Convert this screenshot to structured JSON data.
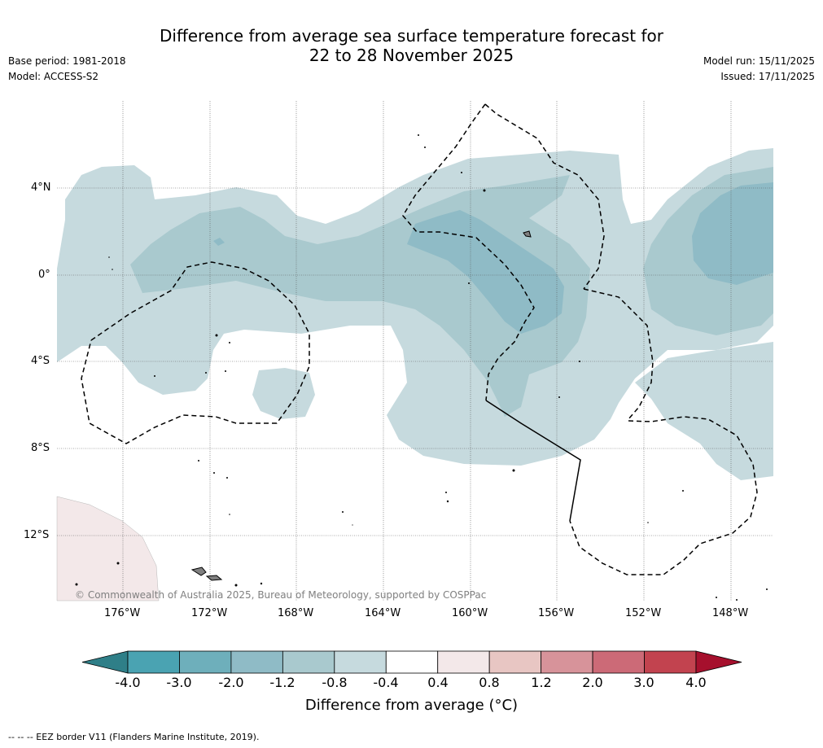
{
  "header": {
    "title_line1": "Difference from average sea surface temperature forecast for",
    "title_line2": "22 to 28 November 2025",
    "base_period": "Base period: 1981-2018",
    "model": "Model: ACCESS-S2",
    "model_run": "Model run: 15/11/2025",
    "issued": "Issued: 17/11/2025"
  },
  "map": {
    "lat_labels": [
      "4°N",
      "0°",
      "4°S",
      "8°S",
      "12°S"
    ],
    "lon_labels": [
      "176°W",
      "172°W",
      "168°W",
      "164°W",
      "160°W",
      "156°W",
      "152°W",
      "148°W"
    ],
    "copyright": "© Commonwealth of Australia 2025, Bureau of Meteorology, supported by COSPPac"
  },
  "colorbar": {
    "ticks": [
      "-4.0",
      "-3.0",
      "-2.0",
      "-1.2",
      "-0.8",
      "-0.4",
      "0.4",
      "0.8",
      "1.2",
      "2.0",
      "3.0",
      "4.0"
    ],
    "colors": [
      "#4aa3b2",
      "#6eafbb",
      "#8fbbc6",
      "#a9c9ce",
      "#c6dade",
      "#ffffff",
      "#f3e8e9",
      "#e8c6c3",
      "#d7939a",
      "#cc6a77",
      "#c2434f"
    ],
    "low_color": "#2f7f88",
    "high_color": "#a6102d",
    "label": "Difference from average (°C)"
  },
  "footer": "--  --  -- EEZ border V11 (Flanders Marine Institute, 2019)."
}
